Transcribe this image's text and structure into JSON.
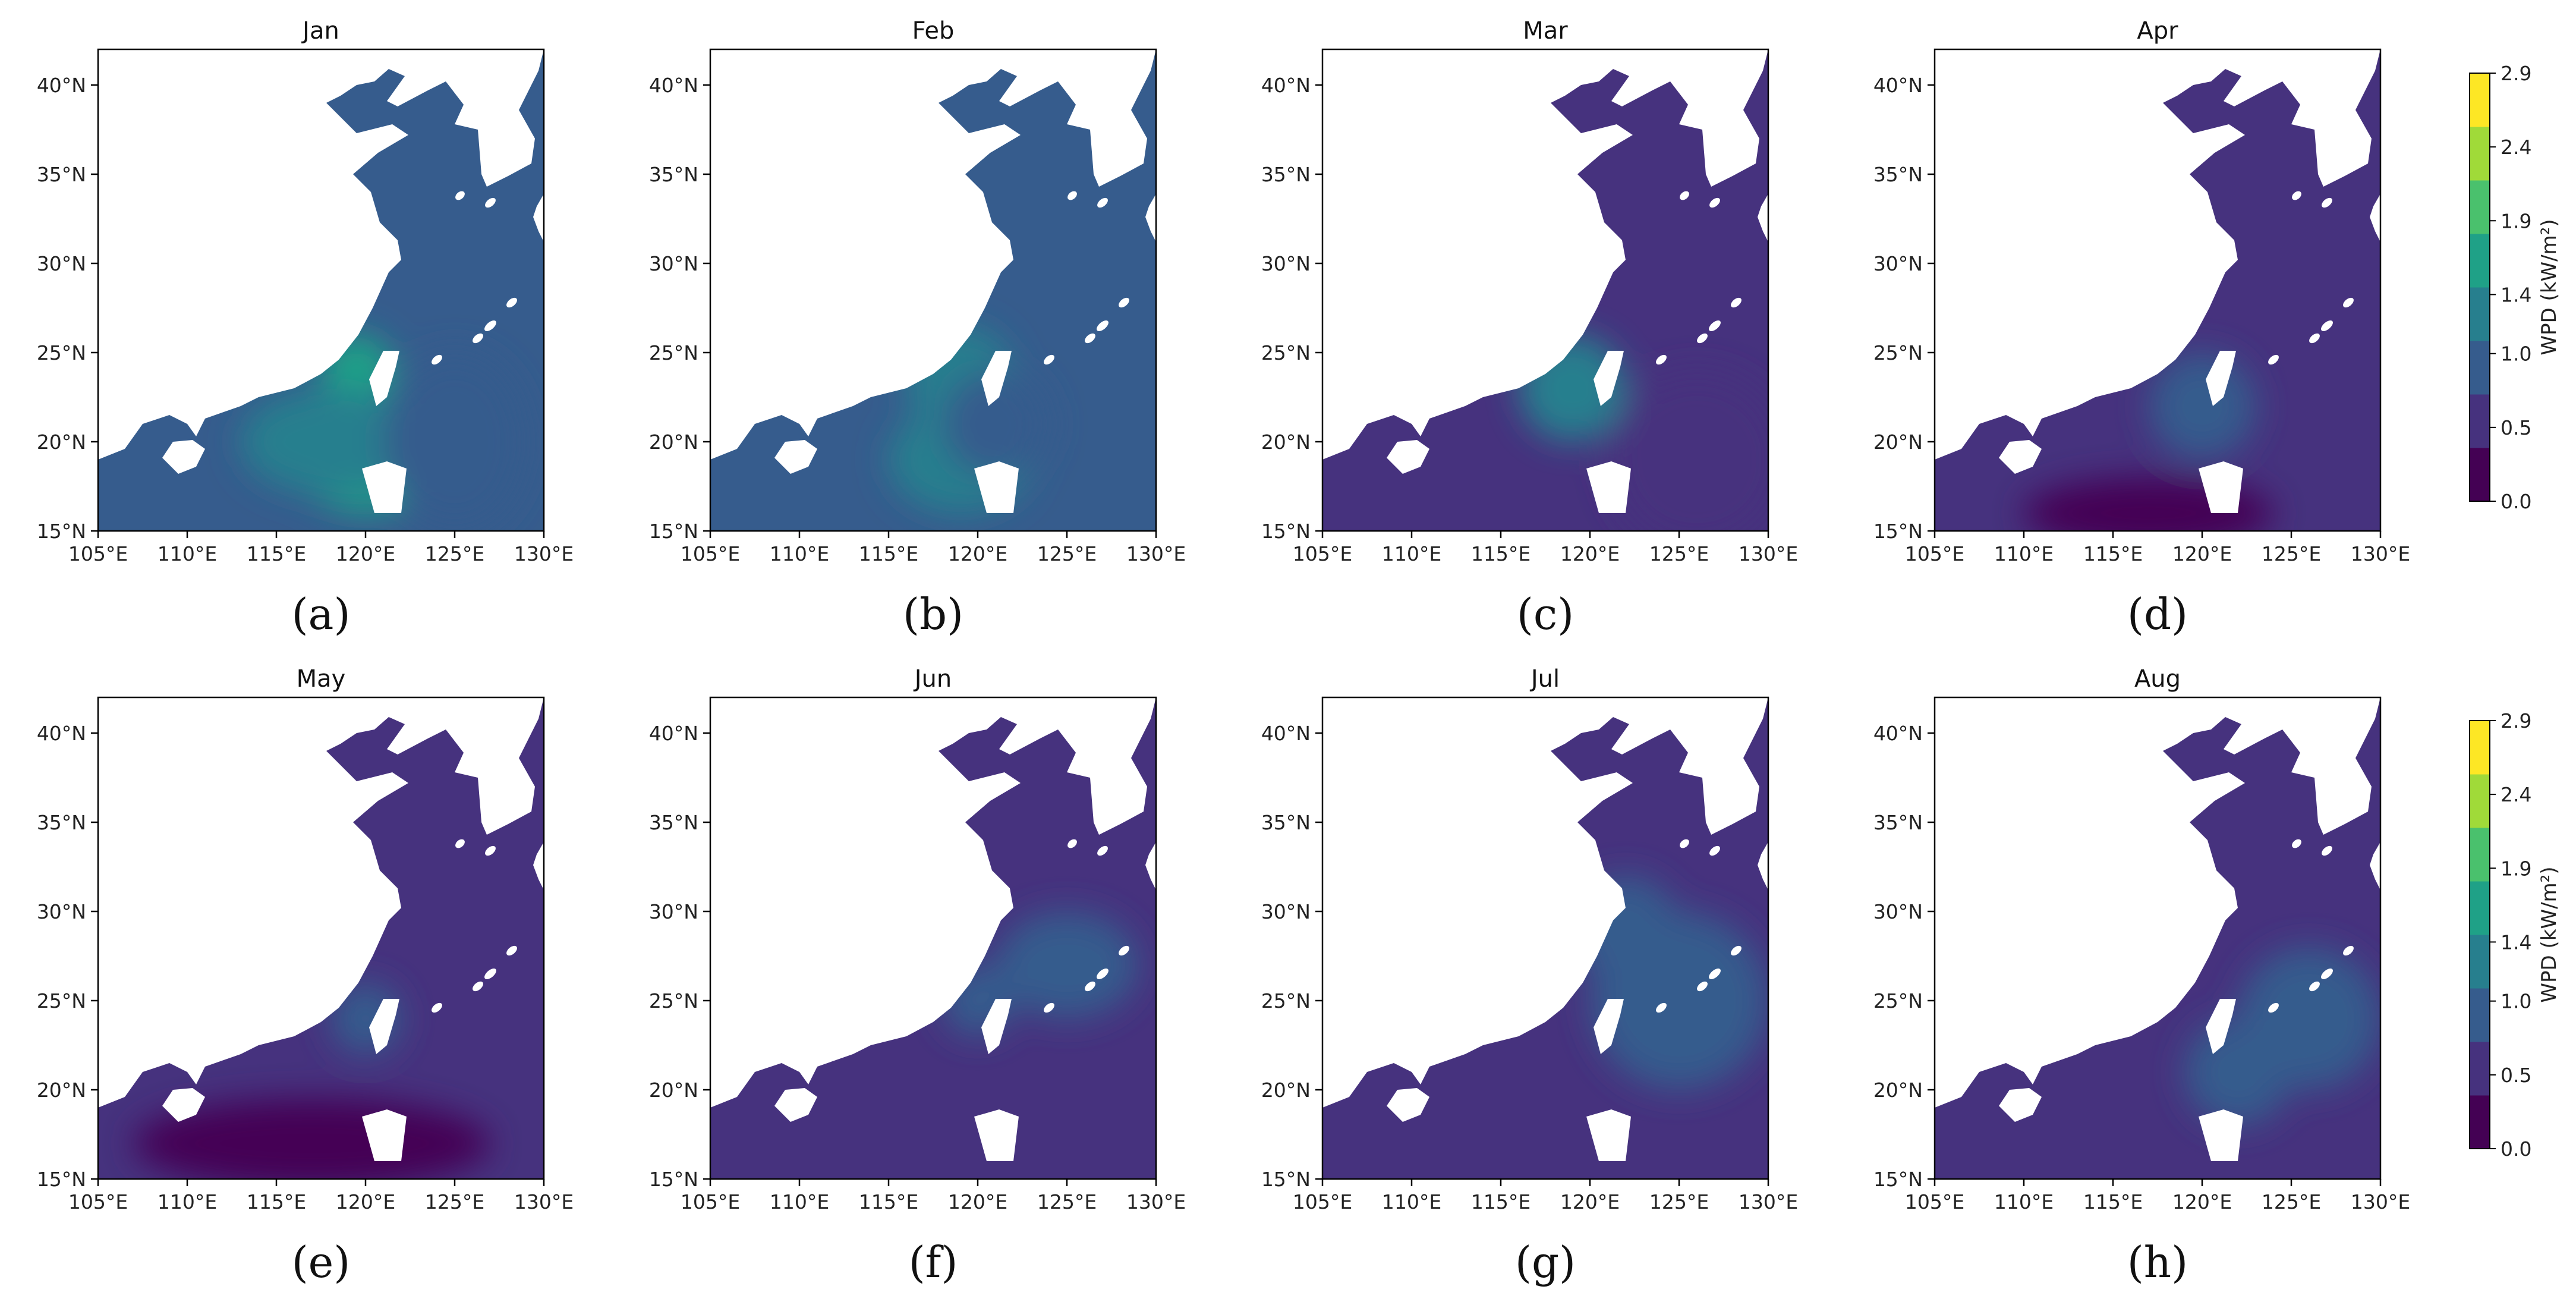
{
  "chart_data": {
    "type": "heatmap",
    "colormap": "viridis",
    "colors": {
      "levels": [
        "#440154",
        "#46327e",
        "#365c8d",
        "#277f8e",
        "#1fa187",
        "#4ac16d",
        "#a0da39",
        "#fde725"
      ],
      "land": "#ffffff",
      "axes": "#000000"
    },
    "x_ticks": [
      "105°E",
      "110°E",
      "115°E",
      "120°E",
      "125°E",
      "130°E"
    ],
    "y_ticks": [
      "15°N",
      "20°N",
      "25°N",
      "30°N",
      "35°N",
      "40°N"
    ],
    "xlim": [
      105,
      130
    ],
    "ylim": [
      15,
      42
    ],
    "colorbar": {
      "label": "WPD (kW/m²)",
      "ticks": [
        "0.0",
        "0.5",
        "1.0",
        "1.4",
        "1.9",
        "2.4",
        "2.9"
      ],
      "range": [
        0,
        2.9
      ]
    },
    "panels": [
      {
        "title": "Jan",
        "label": "(a)",
        "base": 0.8,
        "regions": [
          {
            "lon": 120,
            "lat": 19,
            "rx": 4,
            "ry": 3,
            "v": 1.6
          },
          {
            "lon": 119.5,
            "lat": 24,
            "rx": 2,
            "ry": 2,
            "v": 1.8
          },
          {
            "lon": 118,
            "lat": 20,
            "rx": 5,
            "ry": 3,
            "v": 1.2
          },
          {
            "lon": 125,
            "lat": 20,
            "rx": 4,
            "ry": 5,
            "v": 1.0
          }
        ]
      },
      {
        "title": "Feb",
        "label": "(b)",
        "base": 0.8,
        "regions": [
          {
            "lon": 119,
            "lat": 23.5,
            "rx": 3,
            "ry": 3,
            "v": 1.4
          },
          {
            "lon": 119,
            "lat": 19,
            "rx": 4,
            "ry": 3,
            "v": 1.3
          },
          {
            "lon": 121,
            "lat": 21,
            "rx": 3,
            "ry": 3,
            "v": 1.0
          }
        ]
      },
      {
        "title": "Mar",
        "label": "(c)",
        "base": 0.7,
        "regions": [
          {
            "lon": 119,
            "lat": 23,
            "rx": 3,
            "ry": 3,
            "v": 1.1
          },
          {
            "lon": 126,
            "lat": 19,
            "rx": 5,
            "ry": 5,
            "v": 0.5
          }
        ]
      },
      {
        "title": "Apr",
        "label": "(d)",
        "base": 0.55,
        "regions": [
          {
            "lon": 117,
            "lat": 16,
            "rx": 7,
            "ry": 2,
            "v": 0.2
          },
          {
            "lon": 120,
            "lat": 22,
            "rx": 3,
            "ry": 3,
            "v": 0.8
          }
        ]
      },
      {
        "title": "May",
        "label": "(e)",
        "base": 0.5,
        "regions": [
          {
            "lon": 117,
            "lat": 17,
            "rx": 10,
            "ry": 2.5,
            "v": 0.15
          },
          {
            "lon": 120,
            "lat": 24,
            "rx": 2,
            "ry": 2,
            "v": 0.8
          }
        ]
      },
      {
        "title": "Jun",
        "label": "(f)",
        "base": 0.55,
        "regions": [
          {
            "lon": 125,
            "lat": 27,
            "rx": 4,
            "ry": 3,
            "v": 0.8
          },
          {
            "lon": 120,
            "lat": 25,
            "rx": 2,
            "ry": 2,
            "v": 0.9
          }
        ]
      },
      {
        "title": "Jul",
        "label": "(g)",
        "base": 0.55,
        "regions": [
          {
            "lon": 125,
            "lat": 25,
            "rx": 5,
            "ry": 5,
            "v": 0.75
          },
          {
            "lon": 122,
            "lat": 29,
            "rx": 3,
            "ry": 3,
            "v": 0.95
          }
        ]
      },
      {
        "title": "Aug",
        "label": "(h)",
        "base": 0.55,
        "regions": [
          {
            "lon": 126,
            "lat": 24,
            "rx": 4,
            "ry": 4,
            "v": 0.95
          },
          {
            "lon": 122,
            "lat": 21,
            "rx": 3,
            "ry": 3,
            "v": 0.8
          }
        ]
      }
    ]
  }
}
